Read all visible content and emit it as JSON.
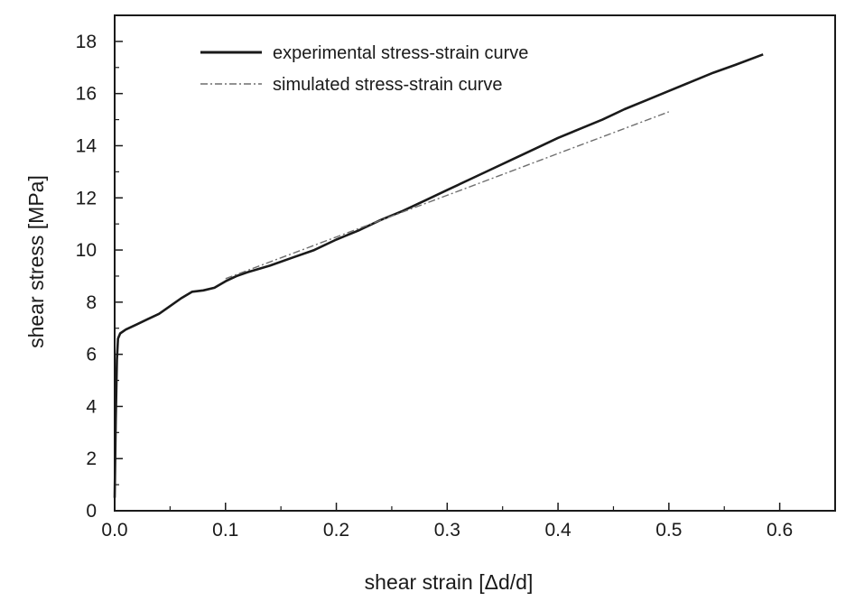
{
  "chart_data": {
    "type": "line",
    "title": "",
    "xlabel": "shear strain [Δd/d]",
    "ylabel": "shear stress [MPa]",
    "xlim": [
      0,
      0.65
    ],
    "ylim": [
      0,
      19
    ],
    "x_ticks": [
      "0.0",
      "0.1",
      "0.2",
      "0.3",
      "0.4",
      "0.5",
      "0.6"
    ],
    "x_tick_values": [
      0,
      0.1,
      0.2,
      0.3,
      0.4,
      0.5,
      0.6
    ],
    "y_ticks": [
      "0",
      "2",
      "4",
      "6",
      "8",
      "10",
      "12",
      "14",
      "16",
      "18"
    ],
    "y_tick_values": [
      0,
      2,
      4,
      6,
      8,
      10,
      12,
      14,
      16,
      18
    ],
    "grid": false,
    "legend_position": "top-left",
    "series": [
      {
        "name": "experimental stress-strain curve",
        "style": "solid",
        "color": "#1a1a1a",
        "x": [
          0.0,
          0.001,
          0.002,
          0.003,
          0.005,
          0.01,
          0.02,
          0.03,
          0.04,
          0.05,
          0.06,
          0.07,
          0.08,
          0.09,
          0.1,
          0.11,
          0.12,
          0.14,
          0.16,
          0.18,
          0.2,
          0.22,
          0.24,
          0.26,
          0.28,
          0.3,
          0.32,
          0.34,
          0.36,
          0.38,
          0.4,
          0.42,
          0.44,
          0.46,
          0.48,
          0.5,
          0.52,
          0.54,
          0.56,
          0.585
        ],
        "y": [
          0.5,
          3.5,
          5.8,
          6.6,
          6.8,
          6.95,
          7.15,
          7.35,
          7.55,
          7.85,
          8.15,
          8.4,
          8.45,
          8.55,
          8.8,
          9.0,
          9.15,
          9.4,
          9.7,
          10.0,
          10.4,
          10.75,
          11.15,
          11.5,
          11.9,
          12.3,
          12.7,
          13.1,
          13.5,
          13.9,
          14.3,
          14.65,
          15.0,
          15.4,
          15.75,
          16.1,
          16.45,
          16.8,
          17.1,
          17.5
        ]
      },
      {
        "name": "simulated stress-strain curve",
        "style": "dash-dot",
        "color": "#6e6e6e",
        "x": [
          0.1,
          0.15,
          0.2,
          0.25,
          0.3,
          0.35,
          0.4,
          0.45,
          0.5
        ],
        "y": [
          8.9,
          9.7,
          10.5,
          11.3,
          12.1,
          12.9,
          13.7,
          14.5,
          15.3
        ]
      }
    ]
  }
}
